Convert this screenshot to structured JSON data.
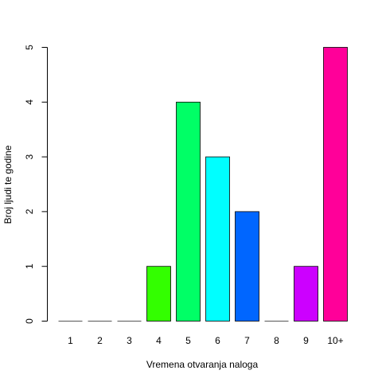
{
  "chart_data": {
    "type": "bar",
    "title": "",
    "xlabel": "Vremena otvaranja naloga",
    "ylabel": "Broj ljudi te godine",
    "categories": [
      "1",
      "2",
      "3",
      "4",
      "5",
      "6",
      "7",
      "8",
      "9",
      "10+"
    ],
    "values": [
      0,
      0,
      0,
      1,
      4,
      3,
      2,
      0,
      1,
      5
    ],
    "colors": [
      "#FF0000",
      "#FF9900",
      "#CCFF00",
      "#33FF00",
      "#00FF66",
      "#00FFFF",
      "#0066FF",
      "#3300FF",
      "#CC00FF",
      "#FF0099"
    ],
    "ylim": [
      0,
      5
    ],
    "yticks": [
      "0",
      "1",
      "2",
      "3",
      "4",
      "5"
    ],
    "grid": false,
    "legend": "none"
  }
}
